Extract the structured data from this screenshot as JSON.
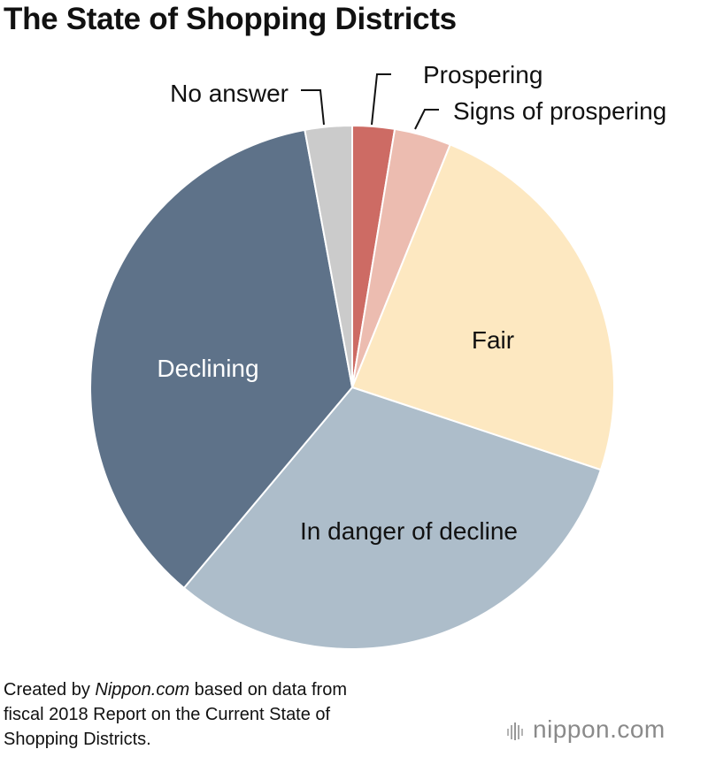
{
  "header": {
    "title": "The State of Shopping Districts"
  },
  "chart_data": {
    "type": "pie",
    "title": "The State of Shopping Districts",
    "slices": [
      {
        "label": "Prospering",
        "value": 2.6,
        "color": "#cd6b64"
      },
      {
        "label": "Signs of prospering",
        "value": 3.5,
        "color": "#ecbcb0"
      },
      {
        "label": "Fair",
        "value": 24.0,
        "color": "#fde8c1"
      },
      {
        "label": "In danger of decline",
        "value": 31.0,
        "color": "#adbdca"
      },
      {
        "label": "Declining",
        "value": 36.0,
        "color": "#5e7289"
      },
      {
        "label": "No answer",
        "value": 2.9,
        "color": "#cbcbcb"
      }
    ],
    "data_labels": "names only",
    "legend": "none"
  },
  "footer": {
    "source_prefix": "Created by ",
    "source_outlet": "Nippon.com",
    "source_line1_rest": " based on data from",
    "source_line2": "fiscal 2018 Report on the Current State of",
    "source_line3": "Shopping Districts.",
    "brand": "nippon.com"
  }
}
